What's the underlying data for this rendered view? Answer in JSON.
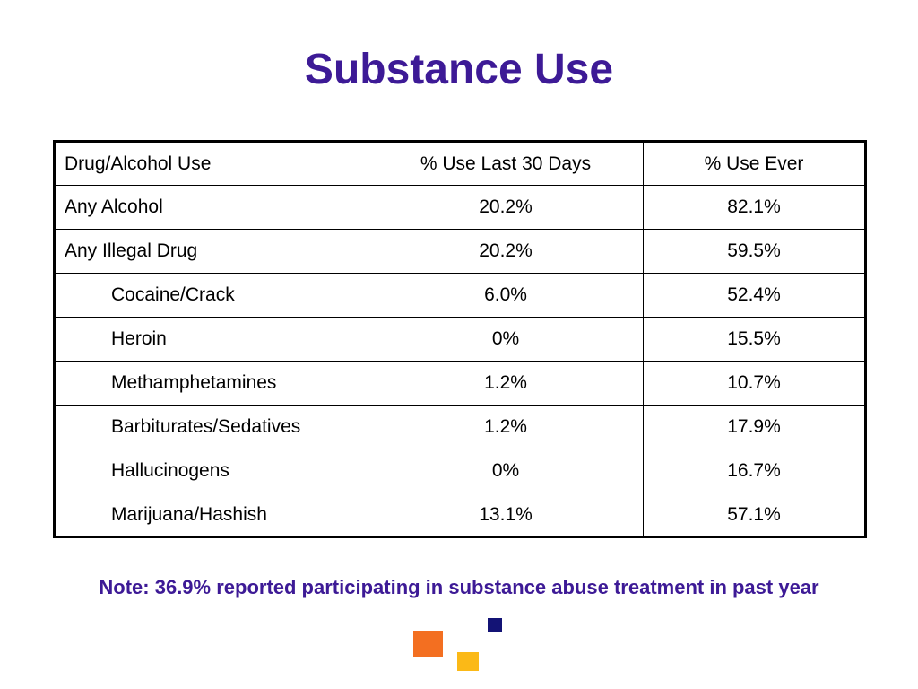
{
  "title": "Substance Use",
  "table": {
    "headers": [
      "Drug/Alcohol Use",
      "% Use Last 30 Days",
      "% Use Ever"
    ],
    "rows": [
      {
        "label": "Any Alcohol",
        "last30": "20.2%",
        "ever": "82.1%",
        "indent": false
      },
      {
        "label": "Any Illegal Drug",
        "last30": "20.2%",
        "ever": "59.5%",
        "indent": false
      },
      {
        "label": "Cocaine/Crack",
        "last30": "6.0%",
        "ever": "52.4%",
        "indent": true
      },
      {
        "label": "Heroin",
        "last30": "0%",
        "ever": "15.5%",
        "indent": true
      },
      {
        "label": "Methamphetamines",
        "last30": "1.2%",
        "ever": "10.7%",
        "indent": true
      },
      {
        "label": "Barbiturates/Sedatives",
        "last30": "1.2%",
        "ever": "17.9%",
        "indent": true
      },
      {
        "label": "Hallucinogens",
        "last30": "0%",
        "ever": "16.7%",
        "indent": true
      },
      {
        "label": "Marijuana/Hashish",
        "last30": "13.1%",
        "ever": "57.1%",
        "indent": true
      }
    ]
  },
  "note": "Note: 36.9% reported participating in substance abuse treatment in past year",
  "colors": {
    "title": "#3d1a96",
    "note": "#3d1a96",
    "decor_orange": "#f36f21",
    "decor_yellow": "#fbb917",
    "decor_navy": "#131375"
  }
}
